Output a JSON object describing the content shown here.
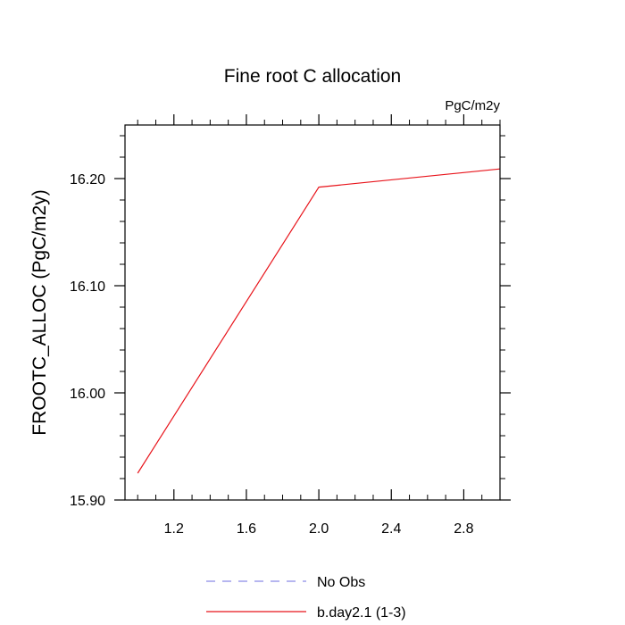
{
  "chart_data": {
    "type": "line",
    "title": "Fine root C allocation",
    "units_label": "PgC/m2y",
    "ylabel": "FROOTC_ALLOC  (PgC/m2y)",
    "xlabel": "",
    "xlim": [
      0.93,
      3.0
    ],
    "ylim": [
      15.9,
      16.25
    ],
    "x_ticks": [
      1.2,
      1.6,
      2.0,
      2.4,
      2.8
    ],
    "x_tick_labels": [
      "1.2",
      "1.6",
      "2.0",
      "2.4",
      "2.8"
    ],
    "y_ticks": [
      15.9,
      16.0,
      16.1,
      16.2
    ],
    "y_tick_labels": [
      "15.90",
      "16.00",
      "16.10",
      "16.20"
    ],
    "x_minor_step": 0.1,
    "y_minor_step": 0.02,
    "grid": false,
    "legend_position": "bottom-center",
    "series": [
      {
        "name": "No Obs",
        "color": "#8a8ae6",
        "dash": "dashed",
        "x": [],
        "values": []
      },
      {
        "name": "b.day2.1 (1-3)",
        "color": "#e8141b",
        "dash": "solid",
        "x": [
          1.0,
          2.0,
          3.0
        ],
        "values": [
          15.925,
          16.192,
          16.209
        ]
      }
    ]
  }
}
